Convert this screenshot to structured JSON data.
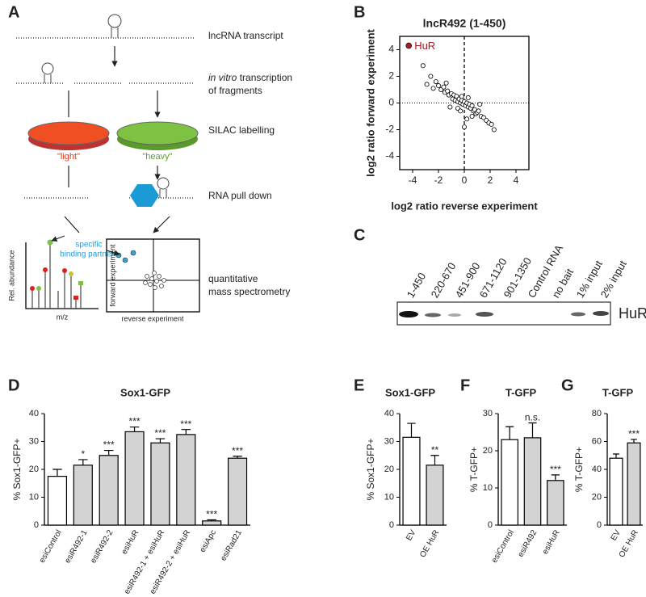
{
  "panel_labels": [
    "A",
    "B",
    "C",
    "D",
    "E",
    "F",
    "G"
  ],
  "diagram": {
    "transcript": "lncRNA transcript",
    "fragments_italic": "in vitro",
    "fragments_1": "transcription",
    "fragments_2": "of fragments",
    "silac": "SILAC labelling",
    "light": "\"light\"",
    "heavy": "\"heavy\"",
    "pulldown": "RNA pull down",
    "ms_1": "quantitative",
    "ms_2": "mass spectrometry",
    "binding_1": "specific",
    "binding_2": "binding partners",
    "spectrum_y": "Rel. abundance",
    "spectrum_x": "m/z",
    "inset_x": "reverse experiment",
    "inset_y": "forward experiment"
  },
  "blot": {
    "lanes": [
      "1-450",
      "220-670",
      "451-900",
      "671-1120",
      "901-1350",
      "Control RNA",
      "no bait",
      "1% input",
      "2% input"
    ],
    "protein": "HuR"
  },
  "chart_data": [
    {
      "type": "scatter",
      "title": "lncR492 (1-450)",
      "xlabel": "log2 ratio reverse experiment",
      "ylabel": "log2 ratio forward experiment",
      "x": [
        -3.2,
        -2.9,
        -2.6,
        -2.2,
        -2.0,
        -1.8,
        -1.6,
        -1.5,
        -1.3,
        -1.2,
        -1.0,
        -0.9,
        -0.8,
        -0.7,
        -0.6,
        -0.5,
        -0.4,
        -0.3,
        -0.2,
        -0.1,
        0,
        0.1,
        0.2,
        0.3,
        0.4,
        0.5,
        0.6,
        0.7,
        0.8,
        0.9,
        1.0,
        1.1,
        1.3,
        1.5,
        1.7,
        1.9,
        2.1,
        2.3,
        -0.5,
        -0.2,
        0.3,
        0.6,
        -1.1,
        -1.4,
        0.2,
        0,
        1.2,
        -2.4,
        -0.3
      ],
      "y": [
        2.8,
        1.4,
        2.0,
        1.6,
        1.3,
        1.0,
        1.2,
        0.8,
        0.9,
        0.6,
        0.7,
        0.3,
        0.6,
        0.2,
        0.5,
        0.1,
        0.3,
        0,
        0.2,
        -0.1,
        0.1,
        -0.2,
        0,
        -0.3,
        -0.1,
        -0.4,
        -0.2,
        -0.6,
        -0.5,
        -0.8,
        -0.7,
        -0.6,
        -1.0,
        -1.1,
        -1.3,
        -1.5,
        -1.6,
        -2.0,
        -0.4,
        0.5,
        0.4,
        -1.0,
        -0.3,
        1.5,
        -1.2,
        -1.8,
        -0.1,
        1.1,
        -0.6
      ],
      "annotations": [
        {
          "text": "HuR",
          "x": -4.3,
          "y": 4.3,
          "color": "#a01d26"
        }
      ],
      "reference_lines": {
        "x": 0,
        "y": 0
      },
      "xlim": [
        -5,
        5
      ],
      "ylim": [
        -5,
        5
      ],
      "xticks": [
        -4,
        -2,
        0,
        2,
        4
      ],
      "yticks": [
        -4,
        -2,
        0,
        2,
        4
      ]
    },
    {
      "type": "bar",
      "title": "Sox1-GFP",
      "ylabel": "% Sox1-GFP+",
      "categories": [
        "esiControl",
        "esiR492-1",
        "esiR492-2",
        "esiHuR",
        "esiR492-1 + esiHuR",
        "esiR492-2 + esiHuR",
        "esiApc",
        "esiRad21"
      ],
      "values": [
        17.5,
        21.5,
        25,
        33.5,
        29.5,
        32.5,
        1.5,
        24
      ],
      "errors": [
        2.5,
        2,
        1.8,
        1.7,
        1.5,
        1.8,
        0.4,
        0.7
      ],
      "annotations": [
        null,
        "*",
        "***",
        "***",
        "***",
        "***",
        "***",
        "***"
      ],
      "colors": [
        "#ffffff",
        "#d3d3d3",
        "#d3d3d3",
        "#d3d3d3",
        "#d3d3d3",
        "#d3d3d3",
        "#d3d3d3",
        "#d3d3d3"
      ],
      "ylim": [
        0,
        40
      ],
      "yticks": [
        0,
        10,
        20,
        30,
        40
      ]
    },
    {
      "type": "bar",
      "title": "Sox1-GFP",
      "ylabel": "% Sox1-GFP+",
      "categories": [
        "EV",
        "OE HuR"
      ],
      "values": [
        31.5,
        21.5
      ],
      "errors": [
        5,
        3.5
      ],
      "annotations": [
        null,
        "**"
      ],
      "colors": [
        "#ffffff",
        "#d3d3d3"
      ],
      "ylim": [
        0,
        40
      ],
      "yticks": [
        0,
        10,
        20,
        30,
        40
      ]
    },
    {
      "type": "bar",
      "title": "T-GFP",
      "ylabel": "% T-GFP+",
      "categories": [
        "esiControl",
        "esiR492",
        "esiHuR"
      ],
      "values": [
        23,
        23.5,
        12
      ],
      "errors": [
        3.5,
        4,
        1.5
      ],
      "annotations": [
        null,
        "n.s.",
        "***"
      ],
      "colors": [
        "#ffffff",
        "#d3d3d3",
        "#d3d3d3"
      ],
      "ylim": [
        0,
        30
      ],
      "yticks": [
        0,
        10,
        20,
        30
      ]
    },
    {
      "type": "bar",
      "title": "T-GFP",
      "ylabel": "% T-GFP+",
      "categories": [
        "EV",
        "OE HuR"
      ],
      "values": [
        48,
        59
      ],
      "errors": [
        3,
        2.5
      ],
      "annotations": [
        null,
        "***"
      ],
      "colors": [
        "#ffffff",
        "#d3d3d3"
      ],
      "ylim": [
        0,
        80
      ],
      "yticks": [
        0,
        20,
        40,
        60,
        80
      ]
    }
  ]
}
